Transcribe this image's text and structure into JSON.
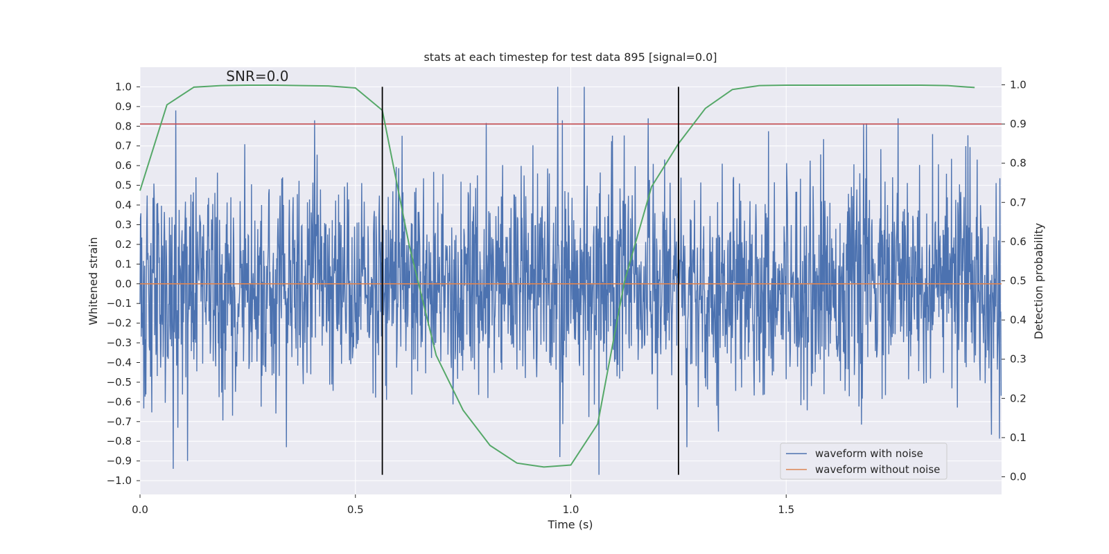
{
  "chart_data": {
    "type": "line",
    "title": "stats at each timestep for test data 895 [signal=0.0]",
    "xlabel": "Time (s)",
    "ylabel": "Whitened strain",
    "y2label": "Detection probability",
    "xlim": [
      0.0,
      2.0
    ],
    "ylim": [
      -1.07,
      1.1
    ],
    "y2lim": [
      -0.045,
      1.045
    ],
    "xticks": [
      0.0,
      0.5,
      1.0,
      1.5
    ],
    "xtick_labels": [
      "0.0",
      "0.5",
      "1.0",
      "1.5"
    ],
    "yticks": [
      -1.0,
      -0.9,
      -0.8,
      -0.7,
      -0.6,
      -0.5,
      -0.4,
      -0.3,
      -0.2,
      -0.1,
      0.0,
      0.1,
      0.2,
      0.3,
      0.4,
      0.5,
      0.6,
      0.7,
      0.8,
      0.9,
      1.0
    ],
    "ytick_labels": [
      "−1.0",
      "−0.9",
      "−0.8",
      "−0.7",
      "−0.6",
      "−0.5",
      "−0.4",
      "−0.3",
      "−0.2",
      "−0.1",
      "0.0",
      "0.1",
      "0.2",
      "0.3",
      "0.4",
      "0.5",
      "0.6",
      "0.7",
      "0.8",
      "0.9",
      "1.0"
    ],
    "y2ticks": [
      0.0,
      0.1,
      0.2,
      0.3,
      0.4,
      0.5,
      0.6,
      0.7,
      0.8,
      0.9,
      1.0
    ],
    "y2tick_labels": [
      "0.0",
      "0.1",
      "0.2",
      "0.3",
      "0.4",
      "0.5",
      "0.6",
      "0.7",
      "0.8",
      "0.9",
      "1.0"
    ],
    "annotation": "SNR=0.0",
    "annotation_at": [
      0.2,
      1.03
    ],
    "threshold_y2": 0.9,
    "vlines_x": [
      0.5625,
      1.25
    ],
    "vline_ymin": -0.97,
    "vline_ymax": 1.0,
    "series": [
      {
        "name": "waveform with noise",
        "axis": "left",
        "color": "#4c72b0",
        "x_start": 0.0,
        "x_step": 0.0009765625,
        "count": 2048,
        "noise_std": 0.27,
        "clip": [
          -0.97,
          1.0
        ],
        "spikes": [
          {
            "x": 0.083,
            "y": 0.88
          },
          {
            "x": 0.077,
            "y": -0.94
          },
          {
            "x": 0.11,
            "y": -0.9
          },
          {
            "x": 0.34,
            "y": -0.83
          },
          {
            "x": 0.405,
            "y": 0.83
          },
          {
            "x": 0.97,
            "y": 1.0
          },
          {
            "x": 0.975,
            "y": -0.88
          },
          {
            "x": 0.98,
            "y": 0.83
          },
          {
            "x": 1.065,
            "y": -0.97
          },
          {
            "x": 1.18,
            "y": 0.84
          },
          {
            "x": 1.27,
            "y": -0.83
          },
          {
            "x": 1.68,
            "y": 0.81
          },
          {
            "x": 1.76,
            "y": 0.84
          },
          {
            "x": 1.84,
            "y": 0.76
          }
        ]
      },
      {
        "name": "waveform without noise",
        "axis": "left",
        "color": "#dd8452",
        "x": [
          0.0,
          2.0
        ],
        "y": [
          0.0,
          0.0
        ]
      },
      {
        "name": "detection probability",
        "axis": "right",
        "color": "#55a868",
        "x": [
          0.0,
          0.0625,
          0.125,
          0.1875,
          0.25,
          0.3125,
          0.375,
          0.4375,
          0.5,
          0.5625,
          0.625,
          0.6875,
          0.75,
          0.8125,
          0.875,
          0.9375,
          1.0,
          1.0625,
          1.125,
          1.1875,
          1.25,
          1.3125,
          1.375,
          1.4375,
          1.5,
          1.5625,
          1.625,
          1.6875,
          1.75,
          1.8125,
          1.875,
          1.9375
        ],
        "y": [
          0.73,
          0.949,
          0.994,
          0.998,
          0.999,
          0.999,
          0.998,
          0.997,
          0.992,
          0.935,
          0.59,
          0.31,
          0.17,
          0.08,
          0.035,
          0.025,
          0.03,
          0.135,
          0.5,
          0.74,
          0.85,
          0.94,
          0.988,
          0.998,
          0.999,
          0.999,
          0.999,
          0.999,
          0.999,
          0.999,
          0.998,
          0.993
        ]
      },
      {
        "name": "threshold",
        "axis": "right",
        "color": "#c44e52",
        "x": [
          0.0,
          2.0
        ],
        "y": [
          0.9,
          0.9
        ]
      }
    ],
    "legend": {
      "placement": "lower-right",
      "entries": [
        {
          "label": "waveform with noise",
          "color": "#4c72b0"
        },
        {
          "label": "waveform without noise",
          "color": "#dd8452"
        }
      ]
    },
    "background": "#eaeaf2",
    "grid_color": "#ffffff",
    "vline_color": "#000000"
  }
}
